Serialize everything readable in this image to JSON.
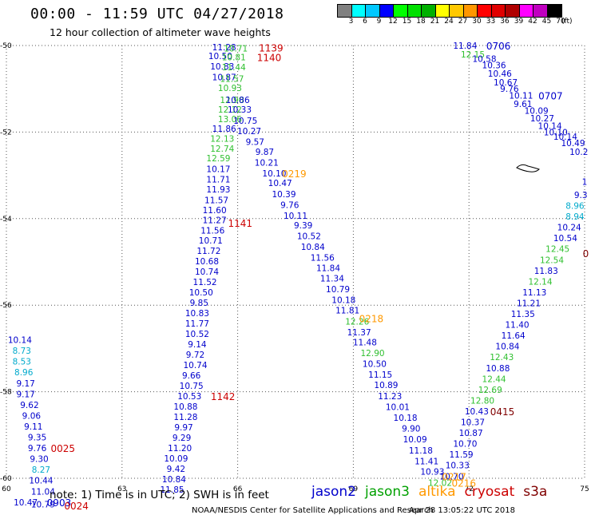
{
  "title": "00:00 - 11:59 UTC 04/27/2018",
  "subtitle": "12 hour collection of altimeter wave heights",
  "legend": {
    "unit": "(ft)",
    "colors": [
      "#808080",
      "#00ffff",
      "#00c8ff",
      "#0000ff",
      "#00ff00",
      "#00e000",
      "#00b000",
      "#ffff00",
      "#ffc800",
      "#ff9600",
      "#ff0000",
      "#e00000",
      "#b00000",
      "#ff00ff",
      "#c000c0",
      "#000000"
    ],
    "labels": [
      "3",
      "6",
      "9",
      "12",
      "15",
      "18",
      "21",
      "24",
      "27",
      "30",
      "33",
      "36",
      "39",
      "42",
      "45",
      "70"
    ]
  },
  "note": "note: 1) Time is in UTC; 2) SWH is in feet",
  "sources": [
    {
      "name": "jason2",
      "color": "#0000cc"
    },
    {
      "name": "jason3",
      "color": "#00a000"
    },
    {
      "name": "altika",
      "color": "#ff9900"
    },
    {
      "name": "cryosat",
      "color": "#cc0000"
    },
    {
      "name": "s3a",
      "color": "#800000"
    }
  ],
  "credit": "NOAA/NESDIS Center for Satellite Applications and Research",
  "stamp": "Apr 28 13:05:22 UTC 2018",
  "chart_data": {
    "type": "scatter",
    "xlim": [
      60,
      75
    ],
    "ylim": [
      -60,
      -50
    ],
    "grid": true,
    "x_ticks": [
      60,
      63,
      66,
      69,
      72,
      75
    ],
    "y_ticks": [
      -50,
      -52,
      -54,
      -56,
      -58,
      -60
    ],
    "colors": {
      "jason2": "#0000cc",
      "jason3": "#30c030",
      "altika": "#ff9900",
      "cryosat": "#cc0000",
      "s3a": "#800000",
      "cyan": "#00aacc"
    },
    "points": [
      {
        "x": 65.65,
        "y": -50.04,
        "v": "11.28",
        "c": "jason2"
      },
      {
        "x": 65.95,
        "y": -50.06,
        "v": "10.71",
        "c": "jason3"
      },
      {
        "x": 65.55,
        "y": -50.24,
        "v": "10.50",
        "c": "jason2"
      },
      {
        "x": 65.9,
        "y": -50.27,
        "v": "10.81",
        "c": "jason3"
      },
      {
        "x": 65.6,
        "y": -50.48,
        "v": "10.83",
        "c": "jason2"
      },
      {
        "x": 65.9,
        "y": -50.5,
        "v": "11.44",
        "c": "jason3"
      },
      {
        "x": 65.65,
        "y": -50.73,
        "v": "10.87",
        "c": "jason2"
      },
      {
        "x": 65.85,
        "y": -50.77,
        "v": "11.57",
        "c": "jason3"
      },
      {
        "x": 65.8,
        "y": -50.98,
        "v": "10.93",
        "c": "jason3"
      },
      {
        "x": 65.85,
        "y": -51.25,
        "v": "12.90",
        "c": "jason3"
      },
      {
        "x": 66.0,
        "y": -51.25,
        "v": "10.86",
        "c": "jason2"
      },
      {
        "x": 65.8,
        "y": -51.48,
        "v": "12.12",
        "c": "jason3"
      },
      {
        "x": 66.05,
        "y": -51.48,
        "v": "10.33",
        "c": "jason2"
      },
      {
        "x": 65.8,
        "y": -51.7,
        "v": "13.06",
        "c": "jason3"
      },
      {
        "x": 66.2,
        "y": -51.73,
        "v": "10.75",
        "c": "jason2"
      },
      {
        "x": 65.65,
        "y": -51.92,
        "v": "11.86",
        "c": "jason2"
      },
      {
        "x": 66.3,
        "y": -51.97,
        "v": "10.27",
        "c": "jason2"
      },
      {
        "x": 65.6,
        "y": -52.15,
        "v": "12.13",
        "c": "jason3"
      },
      {
        "x": 66.45,
        "y": -52.22,
        "v": "9.57",
        "c": "jason2"
      },
      {
        "x": 65.6,
        "y": -52.38,
        "v": "12.74",
        "c": "jason3"
      },
      {
        "x": 66.7,
        "y": -52.45,
        "v": "9.87",
        "c": "jason2"
      },
      {
        "x": 65.5,
        "y": -52.6,
        "v": "12.59",
        "c": "jason3"
      },
      {
        "x": 66.75,
        "y": -52.7,
        "v": "10.21",
        "c": "jason2"
      },
      {
        "x": 65.5,
        "y": -52.85,
        "v": "10.17",
        "c": "jason2"
      },
      {
        "x": 66.95,
        "y": -52.95,
        "v": "10.10",
        "c": "jason2"
      },
      {
        "x": 65.5,
        "y": -53.09,
        "v": "11.71",
        "c": "jason2"
      },
      {
        "x": 67.1,
        "y": -53.17,
        "v": "10.47",
        "c": "jason2"
      },
      {
        "x": 65.5,
        "y": -53.32,
        "v": "11.93",
        "c": "jason2"
      },
      {
        "x": 67.2,
        "y": -53.43,
        "v": "10.39",
        "c": "jason2"
      },
      {
        "x": 65.45,
        "y": -53.57,
        "v": "11.57",
        "c": "jason2"
      },
      {
        "x": 67.35,
        "y": -53.68,
        "v": "9.76",
        "c": "jason2"
      },
      {
        "x": 65.4,
        "y": -53.8,
        "v": "11.60",
        "c": "jason2"
      },
      {
        "x": 67.5,
        "y": -53.93,
        "v": "10.11",
        "c": "jason2"
      },
      {
        "x": 65.4,
        "y": -54.03,
        "v": "11.27",
        "c": "jason2"
      },
      {
        "x": 67.7,
        "y": -54.15,
        "v": "9.39",
        "c": "jason2"
      },
      {
        "x": 65.35,
        "y": -54.27,
        "v": "11.56",
        "c": "jason2"
      },
      {
        "x": 67.85,
        "y": -54.4,
        "v": "10.52",
        "c": "jason2"
      },
      {
        "x": 65.3,
        "y": -54.5,
        "v": "10.71",
        "c": "jason2"
      },
      {
        "x": 67.95,
        "y": -54.65,
        "v": "10.84",
        "c": "jason2"
      },
      {
        "x": 65.25,
        "y": -54.74,
        "v": "11.72",
        "c": "jason2"
      },
      {
        "x": 68.2,
        "y": -54.9,
        "v": "11.56",
        "c": "jason2"
      },
      {
        "x": 65.2,
        "y": -54.98,
        "v": "10.68",
        "c": "jason2"
      },
      {
        "x": 68.35,
        "y": -55.14,
        "v": "11.84",
        "c": "jason2"
      },
      {
        "x": 65.2,
        "y": -55.22,
        "v": "10.74",
        "c": "jason2"
      },
      {
        "x": 68.45,
        "y": -55.38,
        "v": "11.34",
        "c": "jason2"
      },
      {
        "x": 65.15,
        "y": -55.46,
        "v": "11.52",
        "c": "jason2"
      },
      {
        "x": 68.6,
        "y": -55.63,
        "v": "10.79",
        "c": "jason2"
      },
      {
        "x": 65.05,
        "y": -55.7,
        "v": "10.50",
        "c": "jason2"
      },
      {
        "x": 68.75,
        "y": -55.88,
        "v": "10.18",
        "c": "jason2"
      },
      {
        "x": 65.0,
        "y": -55.94,
        "v": "9.85",
        "c": "jason2"
      },
      {
        "x": 68.85,
        "y": -56.12,
        "v": "11.81",
        "c": "jason2"
      },
      {
        "x": 64.95,
        "y": -56.18,
        "v": "10.83",
        "c": "jason2"
      },
      {
        "x": 69.1,
        "y": -56.37,
        "v": "12.26",
        "c": "jason3"
      },
      {
        "x": 64.95,
        "y": -56.42,
        "v": "11.77",
        "c": "jason2"
      },
      {
        "x": 69.15,
        "y": -56.62,
        "v": "11.37",
        "c": "jason2"
      },
      {
        "x": 64.95,
        "y": -56.66,
        "v": "10.52",
        "c": "jason2"
      },
      {
        "x": 69.3,
        "y": -56.85,
        "v": "11.48",
        "c": "jason2"
      },
      {
        "x": 64.95,
        "y": -56.9,
        "v": "9.14",
        "c": "jason2"
      },
      {
        "x": 69.5,
        "y": -57.1,
        "v": "12.90",
        "c": "jason3"
      },
      {
        "x": 64.9,
        "y": -57.14,
        "v": "9.72",
        "c": "jason2"
      },
      {
        "x": 69.55,
        "y": -57.35,
        "v": "10.50",
        "c": "jason2"
      },
      {
        "x": 64.9,
        "y": -57.38,
        "v": "10.74",
        "c": "jason2"
      },
      {
        "x": 69.7,
        "y": -57.6,
        "v": "11.15",
        "c": "jason2"
      },
      {
        "x": 64.8,
        "y": -57.62,
        "v": "9.66",
        "c": "jason2"
      },
      {
        "x": 69.85,
        "y": -57.84,
        "v": "10.89",
        "c": "jason2"
      },
      {
        "x": 64.8,
        "y": -57.86,
        "v": "10.75",
        "c": "jason2"
      },
      {
        "x": 64.75,
        "y": -58.1,
        "v": "10.53",
        "c": "jason2"
      },
      {
        "x": 69.95,
        "y": -58.1,
        "v": "11.23",
        "c": "jason2"
      },
      {
        "x": 64.65,
        "y": -58.34,
        "v": "10.88",
        "c": "jason2"
      },
      {
        "x": 70.15,
        "y": -58.35,
        "v": "10.01",
        "c": "jason2"
      },
      {
        "x": 64.65,
        "y": -58.58,
        "v": "11.28",
        "c": "jason2"
      },
      {
        "x": 70.35,
        "y": -58.6,
        "v": "10.18",
        "c": "jason2"
      },
      {
        "x": 64.6,
        "y": -58.82,
        "v": "9.97",
        "c": "jason2"
      },
      {
        "x": 70.5,
        "y": -58.85,
        "v": "9.90",
        "c": "jason2"
      },
      {
        "x": 64.55,
        "y": -59.06,
        "v": "9.29",
        "c": "jason2"
      },
      {
        "x": 70.6,
        "y": -59.1,
        "v": "10.09",
        "c": "jason2"
      },
      {
        "x": 64.5,
        "y": -59.3,
        "v": "11.20",
        "c": "jason2"
      },
      {
        "x": 70.75,
        "y": -59.35,
        "v": "11.18",
        "c": "jason2"
      },
      {
        "x": 64.4,
        "y": -59.54,
        "v": "10.09",
        "c": "jason2"
      },
      {
        "x": 70.9,
        "y": -59.6,
        "v": "11.41",
        "c": "jason2"
      },
      {
        "x": 64.4,
        "y": -59.78,
        "v": "9.42",
        "c": "jason2"
      },
      {
        "x": 71.05,
        "y": -59.84,
        "v": "10.93",
        "c": "jason2"
      },
      {
        "x": 64.35,
        "y": -60.02,
        "v": "10.84",
        "c": "jason2"
      },
      {
        "x": 71.25,
        "y": -60.1,
        "v": "12.02",
        "c": "jason3"
      },
      {
        "x": 64.3,
        "y": -60.26,
        "v": "11.85",
        "c": "jason2"
      },
      {
        "x": 60.35,
        "y": -56.8,
        "v": "10.14",
        "c": "jason2"
      },
      {
        "x": 60.4,
        "y": -57.05,
        "v": "8.73",
        "c": "cyan"
      },
      {
        "x": 60.4,
        "y": -57.3,
        "v": "8.53",
        "c": "cyan"
      },
      {
        "x": 60.45,
        "y": -57.55,
        "v": "8.96",
        "c": "cyan"
      },
      {
        "x": 60.5,
        "y": -57.8,
        "v": "9.17",
        "c": "jason2"
      },
      {
        "x": 60.5,
        "y": -58.05,
        "v": "9.17",
        "c": "jason2"
      },
      {
        "x": 60.6,
        "y": -58.3,
        "v": "9.62",
        "c": "jason2"
      },
      {
        "x": 60.65,
        "y": -58.55,
        "v": "9.06",
        "c": "jason2"
      },
      {
        "x": 60.7,
        "y": -58.8,
        "v": "9.11",
        "c": "jason2"
      },
      {
        "x": 60.8,
        "y": -59.05,
        "v": "9.35",
        "c": "jason2"
      },
      {
        "x": 60.8,
        "y": -59.3,
        "v": "9.76",
        "c": "jason2"
      },
      {
        "x": 60.85,
        "y": -59.55,
        "v": "9.30",
        "c": "jason2"
      },
      {
        "x": 60.9,
        "y": -59.8,
        "v": "8.27",
        "c": "cyan"
      },
      {
        "x": 60.9,
        "y": -60.05,
        "v": "10.44",
        "c": "jason2"
      },
      {
        "x": 60.95,
        "y": -60.3,
        "v": "11.04",
        "c": "jason2"
      },
      {
        "x": 60.5,
        "y": -60.55,
        "v": "10.47",
        "c": "jason2"
      },
      {
        "x": 60.95,
        "y": -60.6,
        "v": "10.79",
        "c": "jason2"
      },
      {
        "x": 71.9,
        "y": -50.0,
        "v": "11.84",
        "c": "jason2"
      },
      {
        "x": 72.1,
        "y": -50.2,
        "v": "12.15",
        "c": "jason3"
      },
      {
        "x": 72.4,
        "y": -50.3,
        "v": "10.58",
        "c": "jason2"
      },
      {
        "x": 72.65,
        "y": -50.45,
        "v": "10.36",
        "c": "jason2"
      },
      {
        "x": 72.8,
        "y": -50.65,
        "v": "10.46",
        "c": "jason2"
      },
      {
        "x": 72.95,
        "y": -50.85,
        "v": "10.67",
        "c": "jason2"
      },
      {
        "x": 73.05,
        "y": -51.0,
        "v": "9.76",
        "c": "jason2"
      },
      {
        "x": 73.35,
        "y": -51.15,
        "v": "10.11",
        "c": "jason2"
      },
      {
        "x": 73.4,
        "y": -51.35,
        "v": "9.61",
        "c": "jason2"
      },
      {
        "x": 73.75,
        "y": -51.5,
        "v": "10.09",
        "c": "jason2"
      },
      {
        "x": 73.9,
        "y": -51.68,
        "v": "10.27",
        "c": "jason2"
      },
      {
        "x": 74.1,
        "y": -51.85,
        "v": "10.14",
        "c": "jason2"
      },
      {
        "x": 74.25,
        "y": -52.0,
        "v": "10.10",
        "c": "jason2"
      },
      {
        "x": 74.5,
        "y": -52.1,
        "v": "10.14",
        "c": "jason2"
      },
      {
        "x": 74.7,
        "y": -52.25,
        "v": "10.49",
        "c": "jason2"
      },
      {
        "x": 74.85,
        "y": -52.45,
        "v": "10.2",
        "c": "jason2"
      },
      {
        "x": 75.0,
        "y": -53.15,
        "v": "1",
        "c": "jason2"
      },
      {
        "x": 74.9,
        "y": -53.45,
        "v": "9.3",
        "c": "jason2"
      },
      {
        "x": 74.9,
        "y": -53.4,
        "v": "",
        "c": "jason2"
      },
      {
        "x": 74.75,
        "y": -53.7,
        "v": "8.96",
        "c": "cyan"
      },
      {
        "x": 74.75,
        "y": -53.95,
        "v": "8.94",
        "c": "cyan"
      },
      {
        "x": 74.6,
        "y": -54.2,
        "v": "10.24",
        "c": "jason2"
      },
      {
        "x": 74.5,
        "y": -54.45,
        "v": "10.54",
        "c": "jason2"
      },
      {
        "x": 74.3,
        "y": -54.7,
        "v": "12.45",
        "c": "jason3"
      },
      {
        "x": 74.15,
        "y": -54.95,
        "v": "12.54",
        "c": "jason3"
      },
      {
        "x": 74.0,
        "y": -55.2,
        "v": "11.83",
        "c": "jason2"
      },
      {
        "x": 73.85,
        "y": -55.45,
        "v": "12.14",
        "c": "jason3"
      },
      {
        "x": 73.7,
        "y": -55.7,
        "v": "11.13",
        "c": "jason2"
      },
      {
        "x": 73.55,
        "y": -55.95,
        "v": "11.21",
        "c": "jason2"
      },
      {
        "x": 73.4,
        "y": -56.2,
        "v": "11.35",
        "c": "jason2"
      },
      {
        "x": 73.25,
        "y": -56.45,
        "v": "11.40",
        "c": "jason2"
      },
      {
        "x": 73.15,
        "y": -56.7,
        "v": "11.64",
        "c": "jason2"
      },
      {
        "x": 73.0,
        "y": -56.95,
        "v": "10.84",
        "c": "jason2"
      },
      {
        "x": 72.85,
        "y": -57.2,
        "v": "12.43",
        "c": "jason3"
      },
      {
        "x": 72.75,
        "y": -57.45,
        "v": "10.88",
        "c": "jason2"
      },
      {
        "x": 72.65,
        "y": -57.7,
        "v": "12.44",
        "c": "jason3"
      },
      {
        "x": 72.55,
        "y": -57.95,
        "v": "12.69",
        "c": "jason3"
      },
      {
        "x": 72.35,
        "y": -58.2,
        "v": "12.80",
        "c": "jason3"
      },
      {
        "x": 72.2,
        "y": -58.45,
        "v": "10.43",
        "c": "jason2"
      },
      {
        "x": 72.1,
        "y": -58.7,
        "v": "10.37",
        "c": "jason2"
      },
      {
        "x": 72.05,
        "y": -58.95,
        "v": "10.87",
        "c": "jason2"
      },
      {
        "x": 71.9,
        "y": -59.2,
        "v": "10.70",
        "c": "jason2"
      },
      {
        "x": 71.8,
        "y": -59.45,
        "v": "11.59",
        "c": "jason2"
      },
      {
        "x": 71.7,
        "y": -59.7,
        "v": "10.33",
        "c": "jason2"
      },
      {
        "x": 71.55,
        "y": -59.95,
        "v": "10.70",
        "c": "jason2"
      }
    ],
    "time_labels": [
      {
        "x": 66.55,
        "y": -50.05,
        "v": "1139",
        "c": "cryosat"
      },
      {
        "x": 66.5,
        "y": -50.27,
        "v": "1140",
        "c": "cryosat"
      },
      {
        "x": 67.15,
        "y": -52.95,
        "v": "0219",
        "c": "altika"
      },
      {
        "x": 65.75,
        "y": -54.1,
        "v": "1141",
        "c": "cryosat"
      },
      {
        "x": 69.15,
        "y": -56.3,
        "v": "0218",
        "c": "altika"
      },
      {
        "x": 65.3,
        "y": -58.1,
        "v": "1142",
        "c": "cryosat"
      },
      {
        "x": 61.15,
        "y": -59.3,
        "v": "0025",
        "c": "cryosat"
      },
      {
        "x": 61.05,
        "y": -60.55,
        "v": "0903",
        "c": "jason2"
      },
      {
        "x": 61.5,
        "y": -60.63,
        "v": "0024",
        "c": "cryosat"
      },
      {
        "x": 71.3,
        "y": -59.95,
        "v": "0217",
        "c": "altika"
      },
      {
        "x": 71.55,
        "y": -60.1,
        "v": "0216",
        "c": "altika"
      },
      {
        "x": 72.45,
        "y": -50.0,
        "v": "0706",
        "c": "jason2"
      },
      {
        "x": 73.8,
        "y": -51.15,
        "v": "0707",
        "c": "jason2"
      },
      {
        "x": 74.95,
        "y": -54.8,
        "v": "0",
        "c": "s3a"
      },
      {
        "x": 72.55,
        "y": -58.45,
        "v": "0415",
        "c": "s3a"
      }
    ]
  }
}
